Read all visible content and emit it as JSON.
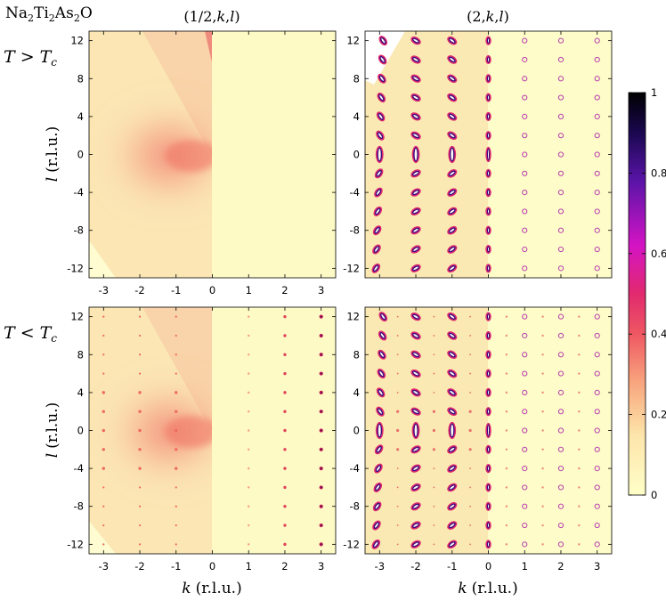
{
  "title": {
    "formula": [
      {
        "t": "Na",
        "sub": false
      },
      {
        "t": "2",
        "sub": true
      },
      {
        "t": "Ti",
        "sub": false
      },
      {
        "t": "2",
        "sub": true
      },
      {
        "t": "As",
        "sub": false
      },
      {
        "t": "2",
        "sub": true
      },
      {
        "t": "O",
        "sub": false
      }
    ]
  },
  "columns": [
    {
      "pre": "(1/2,",
      "k": "k",
      "sep": ",",
      "l": "l",
      "post": ")"
    },
    {
      "pre": "(2,",
      "k": "k",
      "sep": ",",
      "l": "l",
      "post": ")"
    }
  ],
  "rows": [
    {
      "T": "T",
      "rel": ">",
      "Tc": "T",
      "c": "c"
    },
    {
      "T": "T",
      "rel": "<",
      "Tc": "T",
      "c": "c"
    }
  ],
  "ylabel": {
    "var": "l",
    "unit": "(r.l.u.)"
  },
  "xlabel": {
    "var": "k",
    "unit": "(r.l.u.)"
  },
  "chart_data": {
    "type": "heatmap",
    "description_of_axes": "4 panel intensity maps sharing axes",
    "xlim": [
      -3.4,
      3.4
    ],
    "ylim": [
      -13,
      13
    ],
    "xticks": [
      -3,
      -2,
      -1,
      0,
      1,
      2,
      3
    ],
    "xtick_labels": [
      "-3",
      "-2",
      "-1",
      "0",
      "1",
      "2",
      "3"
    ],
    "yticks": [
      12,
      8,
      4,
      0,
      -4,
      -8,
      -12
    ],
    "ytick_labels": [
      "12",
      "8",
      "4",
      "0",
      "-4",
      "-8",
      "-12"
    ],
    "colorbar": {
      "range": [
        0,
        1
      ],
      "ticks": [
        1,
        0.8,
        0.6,
        0.4,
        0.2,
        0
      ],
      "tick_labels": [
        "1",
        "0.8",
        "0.6",
        "0.4",
        "0.2",
        "0"
      ],
      "colormap_stops": [
        "#ffffc8",
        "#fbc98e",
        "#f57a6a",
        "#e0335c",
        "#d010c0",
        "#4a10a0",
        "#000000"
      ]
    },
    "panels": [
      {
        "col": "(1/2,k,l)",
        "row": "T > Tc",
        "peaks_k": [],
        "measured_k_range": [
          -3.4,
          0
        ]
      },
      {
        "col": "(2,k,l)",
        "row": "T > Tc",
        "peaks_k": [
          -3,
          -2,
          -1,
          0,
          1,
          2,
          3
        ],
        "peak_l_spacing": 2
      },
      {
        "col": "(1/2,k,l)",
        "row": "T < Tc",
        "peaks_k": [
          -3,
          -2,
          -1,
          1,
          2,
          3
        ],
        "peak_l_spacing": 2
      },
      {
        "col": "(2,k,l)",
        "row": "T < Tc",
        "peaks_k": [
          -3,
          -2.5,
          -2,
          -1.5,
          -1,
          -0.5,
          0,
          0.5,
          1,
          1.5,
          2,
          2.5,
          3
        ],
        "peak_l_spacing": 2
      }
    ]
  }
}
